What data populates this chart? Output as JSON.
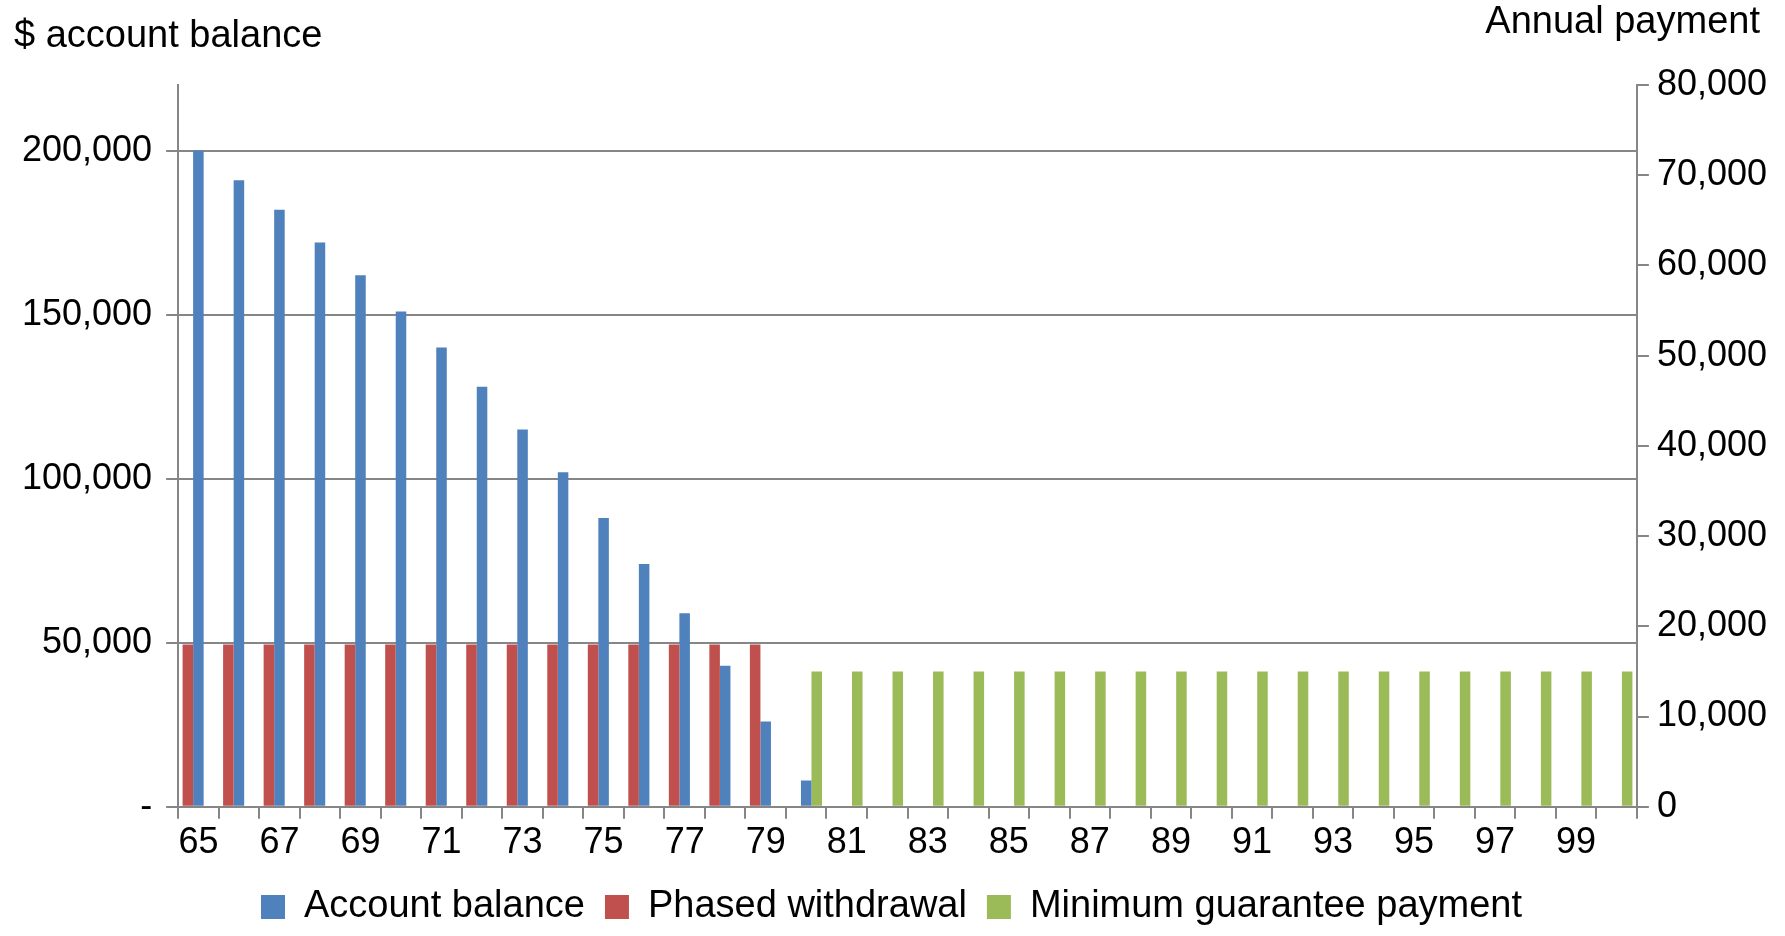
{
  "chart_data": {
    "type": "bar",
    "ylabel": "$ account balance",
    "y2label": "Annual payment",
    "categories": [
      "65",
      null,
      "67",
      null,
      "69",
      null,
      "71",
      null,
      "73",
      null,
      "75",
      null,
      "77",
      null,
      "79",
      null,
      "81",
      null,
      "83",
      null,
      "85",
      null,
      "87",
      null,
      "89",
      null,
      "91",
      null,
      "93",
      null,
      "95",
      null,
      "97",
      null,
      "99",
      null
    ],
    "series": [
      {
        "name": "Phased withdrawal",
        "color": "#c0504d",
        "axis": "y2",
        "values": [
          18000,
          18000,
          18000,
          18000,
          18000,
          18000,
          18000,
          18000,
          18000,
          18000,
          18000,
          18000,
          18000,
          18000,
          18000,
          null,
          null,
          null,
          null,
          null,
          null,
          null,
          null,
          null,
          null,
          null,
          null,
          null,
          null,
          null,
          null,
          null,
          null,
          null,
          null,
          null
        ]
      },
      {
        "name": "Account balance",
        "color": "#4f81bd",
        "values": [
          200000,
          191000,
          182000,
          172000,
          162000,
          151000,
          140000,
          128000,
          115000,
          102000,
          88000,
          74000,
          59000,
          43000,
          26000,
          8000,
          null,
          null,
          null,
          null,
          null,
          null,
          null,
          null,
          null,
          null,
          null,
          null,
          null,
          null,
          null,
          null,
          null,
          null,
          null,
          null
        ]
      },
      {
        "name": "Minimum guarantee payment",
        "color": "#9bbb59",
        "axis": "y2",
        "values": [
          null,
          null,
          null,
          null,
          null,
          null,
          null,
          null,
          null,
          null,
          null,
          null,
          null,
          null,
          null,
          15000,
          15000,
          15000,
          15000,
          15000,
          15000,
          15000,
          15000,
          15000,
          15000,
          15000,
          15000,
          15000,
          15000,
          15000,
          15000,
          15000,
          15000,
          15000,
          15000,
          15000
        ]
      }
    ],
    "ylim": [
      0,
      220000
    ],
    "yticks": [
      {
        "value": 0,
        "label": "-"
      },
      {
        "value": 50000,
        "label": "50,000"
      },
      {
        "value": 100000,
        "label": "100,000"
      },
      {
        "value": 150000,
        "label": "150,000"
      },
      {
        "value": 200000,
        "label": "200,000"
      }
    ],
    "y2lim": [
      0,
      80000
    ],
    "y2ticks": [
      0,
      {
        "value": 10000,
        "label": "10,000"
      },
      {
        "value": 20000,
        "label": "20,000"
      },
      {
        "value": 30000,
        "label": "30,000"
      },
      {
        "value": 40000,
        "label": "40,000"
      },
      {
        "value": 50000,
        "label": "50,000"
      },
      {
        "value": 60000,
        "label": "60,000"
      },
      {
        "value": 70000,
        "label": "70,000"
      },
      {
        "value": 80000,
        "label": "80,000"
      }
    ],
    "grid": "y",
    "legend": "bottom"
  }
}
